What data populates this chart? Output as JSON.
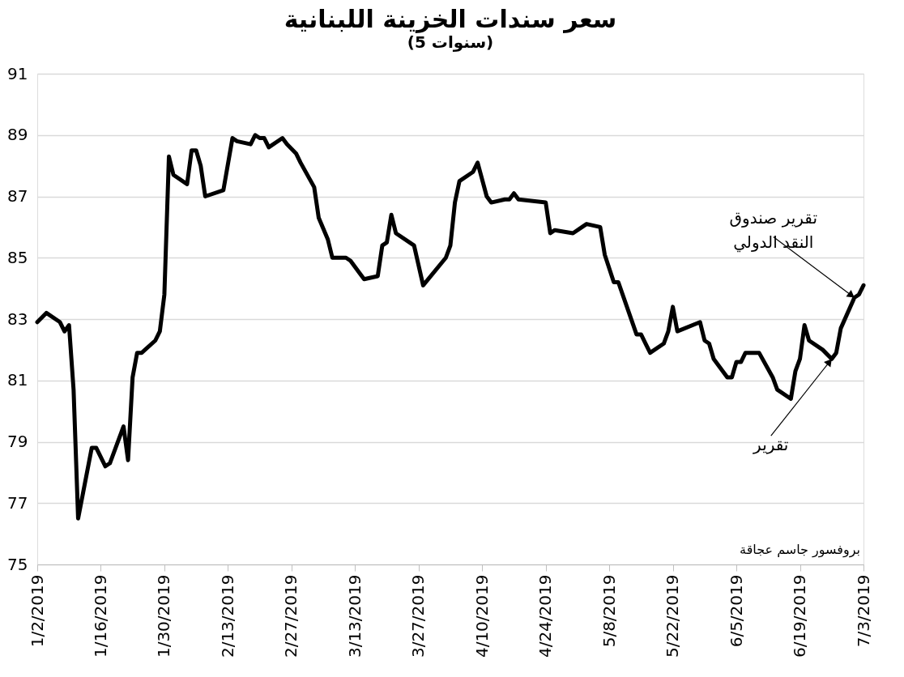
{
  "chart_data": {
    "type": "line",
    "title": "سعر سندات الخزينة اللبنانية",
    "subtitle": "(5 سنوات)",
    "x": [
      "2019-01-02",
      "2019-01-04",
      "2019-01-07",
      "2019-01-08",
      "2019-01-09",
      "2019-01-10",
      "2019-01-11",
      "2019-01-14",
      "2019-01-15",
      "2019-01-17",
      "2019-01-18",
      "2019-01-21",
      "2019-01-22",
      "2019-01-23",
      "2019-01-24",
      "2019-01-25",
      "2019-01-28",
      "2019-01-29",
      "2019-01-30",
      "2019-01-31",
      "2019-02-01",
      "2019-02-04",
      "2019-02-05",
      "2019-02-06",
      "2019-02-07",
      "2019-02-08",
      "2019-02-12",
      "2019-02-14",
      "2019-02-15",
      "2019-02-18",
      "2019-02-19",
      "2019-02-20",
      "2019-02-21",
      "2019-02-22",
      "2019-02-25",
      "2019-02-26",
      "2019-02-28",
      "2019-03-01",
      "2019-03-04",
      "2019-03-05",
      "2019-03-07",
      "2019-03-08",
      "2019-03-11",
      "2019-03-12",
      "2019-03-14",
      "2019-03-15",
      "2019-03-18",
      "2019-03-19",
      "2019-03-20",
      "2019-03-21",
      "2019-03-22",
      "2019-03-26",
      "2019-03-28",
      "2019-04-02",
      "2019-04-03",
      "2019-04-04",
      "2019-04-05",
      "2019-04-08",
      "2019-04-09",
      "2019-04-11",
      "2019-04-12",
      "2019-04-15",
      "2019-04-16",
      "2019-04-17",
      "2019-04-18",
      "2019-04-24",
      "2019-04-25",
      "2019-04-26",
      "2019-04-30",
      "2019-05-02",
      "2019-05-03",
      "2019-05-06",
      "2019-05-07",
      "2019-05-09",
      "2019-05-10",
      "2019-05-14",
      "2019-05-15",
      "2019-05-16",
      "2019-05-17",
      "2019-05-20",
      "2019-05-21",
      "2019-05-22",
      "2019-05-23",
      "2019-05-28",
      "2019-05-29",
      "2019-05-30",
      "2019-05-31",
      "2019-06-03",
      "2019-06-04",
      "2019-06-05",
      "2019-06-06",
      "2019-06-07",
      "2019-06-10",
      "2019-06-13",
      "2019-06-14",
      "2019-06-17",
      "2019-06-18",
      "2019-06-19",
      "2019-06-20",
      "2019-06-21",
      "2019-06-24",
      "2019-06-26",
      "2019-06-27",
      "2019-06-28",
      "2019-07-01",
      "2019-07-02",
      "2019-07-03"
    ],
    "series": [
      {
        "color": "#000000",
        "values": [
          82.9,
          83.2,
          82.9,
          82.6,
          82.8,
          80.7,
          76.5,
          78.8,
          78.8,
          78.2,
          78.3,
          79.5,
          78.4,
          81.1,
          81.9,
          81.9,
          82.3,
          82.6,
          83.8,
          88.3,
          87.7,
          87.4,
          88.5,
          88.5,
          88.0,
          87.0,
          87.2,
          88.9,
          88.8,
          88.7,
          89.0,
          88.9,
          88.9,
          88.6,
          88.9,
          88.7,
          88.4,
          88.1,
          87.3,
          86.3,
          85.6,
          85.0,
          85.0,
          84.9,
          84.5,
          84.3,
          84.4,
          85.4,
          85.5,
          86.4,
          85.8,
          85.4,
          84.1,
          85.0,
          85.4,
          86.8,
          87.5,
          87.8,
          88.1,
          87.0,
          86.8,
          86.9,
          86.9,
          87.1,
          86.9,
          86.8,
          85.8,
          85.9,
          85.8,
          86.0,
          86.1,
          86.0,
          85.1,
          84.2,
          84.2,
          82.5,
          82.5,
          82.2,
          81.9,
          82.2,
          82.6,
          83.4,
          82.6,
          82.9,
          82.3,
          82.2,
          81.7,
          81.1,
          81.1,
          81.6,
          81.6,
          81.9,
          81.9,
          81.1,
          80.7,
          80.4,
          81.3,
          81.7,
          82.8,
          82.3,
          82.0,
          81.7,
          81.9,
          82.7,
          83.7,
          83.8,
          84.1
        ]
      }
    ],
    "xlim": [
      "2019-01-02",
      "2019-07-03"
    ],
    "xticks": [
      {
        "value": "2019-01-02",
        "label": "1/2/2019"
      },
      {
        "value": "2019-01-16",
        "label": "1/16/2019"
      },
      {
        "value": "2019-01-30",
        "label": "1/30/2019"
      },
      {
        "value": "2019-02-13",
        "label": "2/13/2019"
      },
      {
        "value": "2019-02-27",
        "label": "2/27/2019"
      },
      {
        "value": "2019-03-13",
        "label": "3/13/2019"
      },
      {
        "value": "2019-03-27",
        "label": "3/27/2019"
      },
      {
        "value": "2019-04-10",
        "label": "4/10/2019"
      },
      {
        "value": "2019-04-24",
        "label": "4/24/2019"
      },
      {
        "value": "2019-05-08",
        "label": "5/8/2019"
      },
      {
        "value": "2019-05-22",
        "label": "5/22/2019"
      },
      {
        "value": "2019-06-05",
        "label": "6/5/2019"
      },
      {
        "value": "2019-06-19",
        "label": "6/19/2019"
      },
      {
        "value": "2019-07-03",
        "label": "7/3/2019"
      }
    ],
    "ylim": [
      75,
      91
    ],
    "yticks": [
      75,
      77,
      79,
      81,
      83,
      85,
      87,
      89,
      91
    ],
    "grid": "y",
    "marker": "none",
    "line_style": "solid",
    "annotations": [
      {
        "text": "تقرير صندوق\nالنقد الدولي",
        "x": "2019-07-01",
        "y": 83.7
      },
      {
        "text": "تقرير",
        "x": "2019-06-26",
        "y": 81.7
      },
      "بروفسور جاسم عجاقة"
    ]
  }
}
